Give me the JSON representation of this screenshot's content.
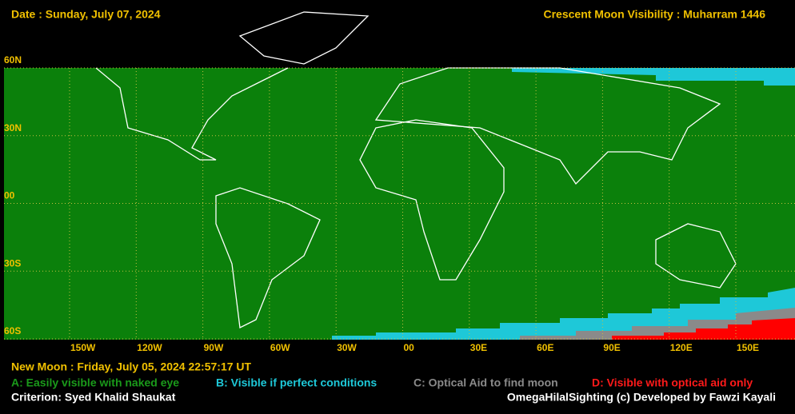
{
  "header": {
    "date": "Date : Sunday, July 07, 2024",
    "title": "Crescent Moon Visibility : Muharram  1446"
  },
  "map": {
    "lat_labels": [
      "60N",
      "30N",
      "00",
      "30S",
      "60S"
    ],
    "lon_labels": [
      "150W",
      "120W",
      "90W",
      "60W",
      "30W",
      "00",
      "30E",
      "60E",
      "90E",
      "120E",
      "150E"
    ]
  },
  "footer": {
    "new_moon": "New Moon : Friday, July 05, 2024  22:57:17  UT",
    "legend": [
      "A: Easily visible with naked eye",
      "B: Visible if perfect conditions",
      "C: Optical Aid to find moon",
      "D: Visible with optical aid only"
    ],
    "criterion": "Criterion: Syed Khalid Shaukat",
    "credit": "OmegaHilalSighting  (c)  Developed by Fawzi Kayali"
  }
}
